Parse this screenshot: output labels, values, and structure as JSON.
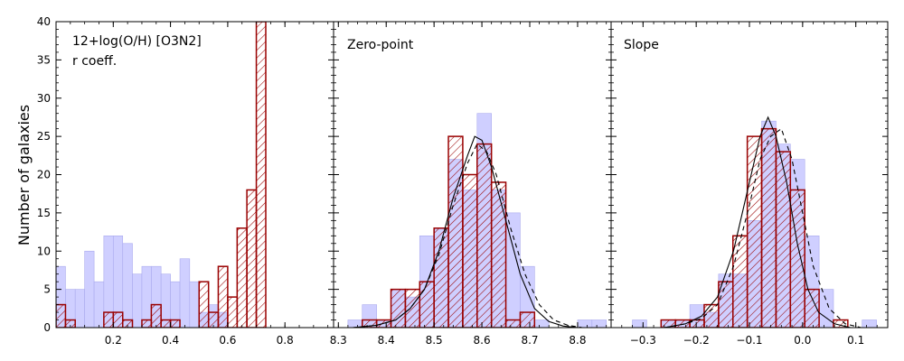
{
  "chart_data": {
    "type": "bar",
    "ylabel": "Number of galaxies",
    "ylim": [
      0,
      40
    ],
    "y_ticks": [
      "0",
      "5",
      "10",
      "15",
      "20",
      "25",
      "30",
      "35",
      "40"
    ],
    "colors": {
      "filled": "#ccccff",
      "filled_edge": "#aaaaee",
      "hatched": "#990000"
    },
    "panels": [
      {
        "title": "12+log(O/H) [O3N2]",
        "subtitle": "r coeff.",
        "xlim": [
          0.0,
          0.97
        ],
        "x_ticks": [
          {
            "v": 0.2,
            "t": "0.2"
          },
          {
            "v": 0.4,
            "t": "0.4"
          },
          {
            "v": 0.6,
            "t": "0.6"
          },
          {
            "v": 0.8,
            "t": "0.8"
          }
        ],
        "bin_edges": [
          0.0,
          0.033,
          0.067,
          0.1,
          0.133,
          0.167,
          0.2,
          0.233,
          0.267,
          0.3,
          0.333,
          0.367,
          0.4,
          0.433,
          0.467,
          0.5,
          0.533,
          0.567,
          0.6,
          0.633,
          0.667,
          0.7,
          0.733,
          0.767,
          0.8,
          0.833,
          0.867,
          0.9,
          0.933,
          0.967
        ],
        "series": [
          {
            "style": "filled",
            "values": [
              8,
              5,
              5,
              10,
              6,
              12,
              12,
              11,
              7,
              8,
              8,
              7,
              6,
              9,
              6,
              2,
              3,
              2,
              0,
              0,
              0,
              0,
              0,
              0,
              0,
              0,
              0,
              0,
              0
            ]
          },
          {
            "style": "hatched",
            "values": [
              3,
              1,
              0,
              0,
              0,
              2,
              2,
              1,
              0,
              1,
              3,
              1,
              1,
              0,
              0,
              6,
              2,
              8,
              4,
              13,
              18,
              40,
              0,
              0,
              0,
              0,
              0,
              0,
              0
            ]
          }
        ],
        "note": "hatched series shown with the 6 first bins of the fine grid; see chart script mapping"
      },
      {
        "title": "Zero-point",
        "xlim": [
          8.29,
          8.87
        ],
        "x_ticks": [
          {
            "v": 8.3,
            "t": "8.3"
          },
          {
            "v": 8.4,
            "t": "8.4"
          },
          {
            "v": 8.5,
            "t": "8.5"
          },
          {
            "v": 8.6,
            "t": "8.6"
          },
          {
            "v": 8.7,
            "t": "8.7"
          },
          {
            "v": 8.8,
            "t": "8.8"
          }
        ],
        "bin_edges": [
          8.32,
          8.35,
          8.38,
          8.41,
          8.44,
          8.47,
          8.5,
          8.53,
          8.56,
          8.59,
          8.62,
          8.65,
          8.68,
          8.71,
          8.74,
          8.77,
          8.8,
          8.83,
          8.86
        ],
        "series": [
          {
            "style": "filled",
            "values": [
              1,
              3,
              1,
              5,
              4,
              12,
              13,
              22,
              18,
              28,
              18,
              15,
              8,
              1,
              0,
              0,
              1,
              1
            ]
          },
          {
            "style": "hatched",
            "values": [
              0,
              1,
              1,
              5,
              5,
              6,
              13,
              25,
              20,
              24,
              19,
              1,
              2,
              0,
              0,
              0,
              0,
              0
            ]
          }
        ],
        "curves": [
          {
            "style": "solid",
            "points": [
              [
                8.33,
                0
              ],
              [
                8.38,
                0.3
              ],
              [
                8.42,
                1
              ],
              [
                8.45,
                2.5
              ],
              [
                8.48,
                5
              ],
              [
                8.51,
                10
              ],
              [
                8.54,
                17
              ],
              [
                8.57,
                22.5
              ],
              [
                8.585,
                25
              ],
              [
                8.6,
                24.5
              ],
              [
                8.62,
                21
              ],
              [
                8.65,
                14
              ],
              [
                8.68,
                7
              ],
              [
                8.71,
                2.5
              ],
              [
                8.74,
                0.8
              ],
              [
                8.77,
                0.2
              ],
              [
                8.8,
                0
              ]
            ]
          },
          {
            "style": "dashed",
            "points": [
              [
                8.33,
                0
              ],
              [
                8.38,
                0.3
              ],
              [
                8.42,
                1
              ],
              [
                8.45,
                2.5
              ],
              [
                8.48,
                5
              ],
              [
                8.51,
                9.5
              ],
              [
                8.54,
                16
              ],
              [
                8.57,
                21.5
              ],
              [
                8.59,
                24
              ],
              [
                8.61,
                23
              ],
              [
                8.63,
                20
              ],
              [
                8.66,
                13
              ],
              [
                8.69,
                7
              ],
              [
                8.72,
                3
              ],
              [
                8.75,
                1
              ],
              [
                8.78,
                0.3
              ],
              [
                8.81,
                0
              ]
            ]
          }
        ]
      },
      {
        "title": "Slope",
        "xlim": [
          -0.36,
          0.16
        ],
        "x_ticks": [
          {
            "v": -0.3,
            "t": "−0.3"
          },
          {
            "v": -0.2,
            "t": "−0.2"
          },
          {
            "v": -0.1,
            "t": "−0.1"
          },
          {
            "v": 0.0,
            "t": "0.0"
          },
          {
            "v": 0.1,
            "t": "0.1"
          }
        ],
        "bin_edges": [
          -0.32,
          -0.293,
          -0.266,
          -0.239,
          -0.212,
          -0.185,
          -0.158,
          -0.131,
          -0.104,
          -0.077,
          -0.05,
          -0.023,
          0.004,
          0.031,
          0.058,
          0.085,
          0.112,
          0.139
        ],
        "series": [
          {
            "style": "filled",
            "values": [
              1,
              0,
              1,
              1,
              3,
              2,
              7,
              7,
              14,
              27,
              24,
              22,
              12,
              5,
              0,
              0,
              1
            ]
          },
          {
            "style": "hatched",
            "values": [
              0,
              0,
              1,
              1,
              1,
              3,
              6,
              12,
              25,
              26,
              23,
              18,
              5,
              0,
              1,
              0,
              0
            ]
          }
        ],
        "curves": [
          {
            "style": "solid",
            "points": [
              [
                -0.26,
                0
              ],
              [
                -0.22,
                0.5
              ],
              [
                -0.19,
                1.5
              ],
              [
                -0.16,
                4
              ],
              [
                -0.13,
                10
              ],
              [
                -0.1,
                19
              ],
              [
                -0.08,
                25
              ],
              [
                -0.065,
                27.5
              ],
              [
                -0.05,
                25
              ],
              [
                -0.03,
                19
              ],
              [
                -0.01,
                11
              ],
              [
                0.01,
                5
              ],
              [
                0.03,
                2
              ],
              [
                0.06,
                0.5
              ],
              [
                0.09,
                0
              ]
            ]
          },
          {
            "style": "dashed",
            "points": [
              [
                -0.26,
                0
              ],
              [
                -0.22,
                0.5
              ],
              [
                -0.19,
                1.2
              ],
              [
                -0.16,
                3
              ],
              [
                -0.13,
                8
              ],
              [
                -0.1,
                16
              ],
              [
                -0.08,
                22
              ],
              [
                -0.06,
                25
              ],
              [
                -0.04,
                26
              ],
              [
                -0.02,
                22
              ],
              [
                0.0,
                15
              ],
              [
                0.02,
                8
              ],
              [
                0.05,
                2.5
              ],
              [
                0.08,
                0.5
              ],
              [
                0.11,
                0
              ]
            ]
          }
        ]
      }
    ]
  }
}
